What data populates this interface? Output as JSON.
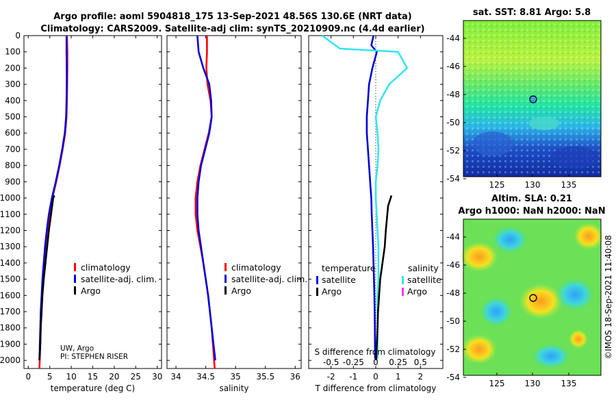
{
  "title_line1": "Argo profile: aoml 5904818_175 13-Sep-2021 48.56S 130.6E (NRT data)",
  "title_line2": "Climatology: CARS2009. Satellite-adj clim: synTS_20210909.nc (4.4d earlier)",
  "colors": {
    "climatology": "#ff0000",
    "satellite_adj": "#0000dd",
    "argo": "#000000",
    "temp_diff_sat": "#33e5ee",
    "sal_diff_argo": "#ff33ff"
  },
  "chart_data": [
    {
      "type": "line",
      "xlabel": "temperature (deg C)",
      "ylim": [
        0,
        2050
      ],
      "xlim": [
        -1,
        31
      ],
      "yticks": [
        0,
        100,
        200,
        300,
        400,
        500,
        600,
        700,
        800,
        900,
        1000,
        1100,
        1200,
        1300,
        1400,
        1500,
        1600,
        1700,
        1800,
        1900,
        2000
      ],
      "xticks": [
        0,
        5,
        10,
        15,
        20,
        25,
        30
      ],
      "legend": {
        "placement": "bottom-right",
        "entries": [
          "climatology",
          "satellite-adj. clim.",
          "Argo"
        ]
      },
      "annotation": [
        "UW, Argo",
        "PI: STEPHEN RISER"
      ],
      "series": [
        {
          "name": "climatology",
          "x": [
            9.0,
            9.1,
            9.1,
            9.05,
            9.0,
            8.9,
            8.6,
            8.0,
            7.3,
            6.5,
            5.6,
            4.9,
            4.4,
            4.0,
            3.7,
            3.4,
            3.2,
            3.0,
            2.9,
            2.8,
            2.6
          ],
          "y": [
            0,
            100,
            200,
            300,
            400,
            500,
            600,
            700,
            800,
            900,
            1000,
            1100,
            1200,
            1300,
            1400,
            1500,
            1600,
            1700,
            1800,
            1900,
            2050
          ]
        },
        {
          "name": "satellite-adj. clim.",
          "x": [
            8.9,
            8.9,
            8.95,
            8.95,
            8.9,
            8.8,
            8.5,
            7.9,
            7.2,
            6.4,
            5.5,
            4.8,
            4.3,
            3.9,
            3.6,
            3.3,
            3.1,
            2.9,
            2.8,
            2.7,
            2.6
          ],
          "y": [
            0,
            100,
            200,
            300,
            400,
            500,
            600,
            700,
            800,
            900,
            1000,
            1100,
            1200,
            1300,
            1400,
            1500,
            1600,
            1700,
            1800,
            1900,
            2000
          ]
        },
        {
          "name": "Argo",
          "x": [
            6.1,
            5.8,
            5.3,
            4.8,
            4.4,
            4.0,
            3.6,
            3.3,
            3.1,
            2.9,
            2.8,
            2.6
          ],
          "y": [
            985,
            1000,
            1100,
            1200,
            1300,
            1400,
            1500,
            1600,
            1700,
            1800,
            1900,
            2000
          ]
        }
      ]
    },
    {
      "type": "line",
      "xlabel": "salinity",
      "ylim": [
        0,
        2050
      ],
      "xlim": [
        33.85,
        36.1
      ],
      "xticks": [
        34,
        34.5,
        35,
        35.5,
        36
      ],
      "legend": {
        "placement": "bottom-right",
        "entries": [
          "climatology",
          "satellite-adj. clim.",
          "Argo"
        ]
      },
      "series": [
        {
          "name": "climatology",
          "x": [
            34.52,
            34.52,
            34.51,
            34.53,
            34.58,
            34.6,
            34.55,
            34.48,
            34.41,
            34.36,
            34.33,
            34.33,
            34.36,
            34.41,
            34.46,
            34.5,
            34.54,
            34.57,
            34.6,
            34.62,
            34.65
          ],
          "y": [
            0,
            100,
            200,
            300,
            400,
            500,
            600,
            700,
            800,
            900,
            1000,
            1100,
            1200,
            1300,
            1400,
            1500,
            1600,
            1700,
            1800,
            1900,
            2050
          ]
        },
        {
          "name": "satellite-adj. clim.",
          "x": [
            34.36,
            34.38,
            34.46,
            34.56,
            34.59,
            34.6,
            34.56,
            34.49,
            34.42,
            34.38,
            34.36,
            34.36,
            34.38,
            34.42,
            34.46,
            34.5,
            34.54,
            34.57,
            34.6,
            34.63,
            34.66
          ],
          "y": [
            0,
            100,
            200,
            300,
            400,
            500,
            600,
            700,
            800,
            900,
            1000,
            1100,
            1200,
            1300,
            1400,
            1500,
            1600,
            1700,
            1800,
            1900,
            2000
          ]
        }
      ]
    },
    {
      "type": "line",
      "xlabel": "T difference from climatology",
      "xlim": [
        -3,
        3
      ],
      "xticks": [
        -2,
        -1,
        0,
        1,
        2
      ],
      "s_label": "S difference from climatology",
      "s_ticks": [
        "-0.5",
        "-0.25",
        "0",
        "0.25",
        "0.5"
      ],
      "legend": {
        "temperature_title": "temperature",
        "salinity_title": "salinity",
        "satellite": "satellite",
        "argo": "Argo"
      },
      "series": [
        {
          "name": "temperature satellite",
          "x": [
            -0.1,
            -0.2,
            0.05,
            -0.15,
            -0.3,
            -0.35,
            -0.4,
            -0.4,
            -0.35,
            -0.3,
            -0.25,
            -0.2,
            -0.18,
            -0.15,
            -0.12,
            -0.1,
            -0.08,
            -0.06,
            -0.05,
            -0.04,
            -0.03
          ],
          "y": [
            0,
            60,
            100,
            200,
            300,
            400,
            500,
            600,
            700,
            800,
            900,
            1000,
            1100,
            1200,
            1300,
            1400,
            1500,
            1600,
            1700,
            1800,
            1990
          ]
        },
        {
          "name": "salinity satellite",
          "x": [
            -0.6,
            -0.4,
            0.25,
            0.35,
            0.15,
            0.05,
            0.0,
            0.02,
            0.03,
            0.02,
            0.0,
            0.0,
            0.01,
            0.02,
            0.03,
            0.03,
            0.03,
            0.02,
            0.02,
            0.02,
            0.02
          ],
          "y": [
            0,
            80,
            100,
            200,
            300,
            400,
            500,
            600,
            700,
            800,
            900,
            1000,
            1100,
            1200,
            1300,
            1400,
            1500,
            1600,
            1700,
            1800,
            1990
          ]
        },
        {
          "name": "temperature Argo",
          "x": [
            0.7,
            0.55,
            0.45,
            0.4,
            0.3,
            0.2,
            0.15,
            0.1,
            0.08,
            0.05,
            0.03,
            0.02
          ],
          "y": [
            985,
            1050,
            1200,
            1300,
            1400,
            1500,
            1600,
            1700,
            1800,
            1900,
            1950,
            2000
          ]
        }
      ]
    }
  ],
  "sst_map": {
    "title": "sat. SST: 8.81 Argo: 5.8",
    "yticks": [
      "-44",
      "-46",
      "-48",
      "-50",
      "-52",
      "-54"
    ],
    "xticks": [
      "125",
      "130",
      "135"
    ]
  },
  "sla_map": {
    "title1": "Altim. SLA: 0.21",
    "title2": "Argo h1000: NaN h2000: NaN",
    "yticks": [
      "-44",
      "-46",
      "-48",
      "-50",
      "-52",
      "-54"
    ],
    "xticks": [
      "125",
      "130",
      "135"
    ]
  },
  "watermark": "©IMOS 18-Sep-2021 11:40:08"
}
